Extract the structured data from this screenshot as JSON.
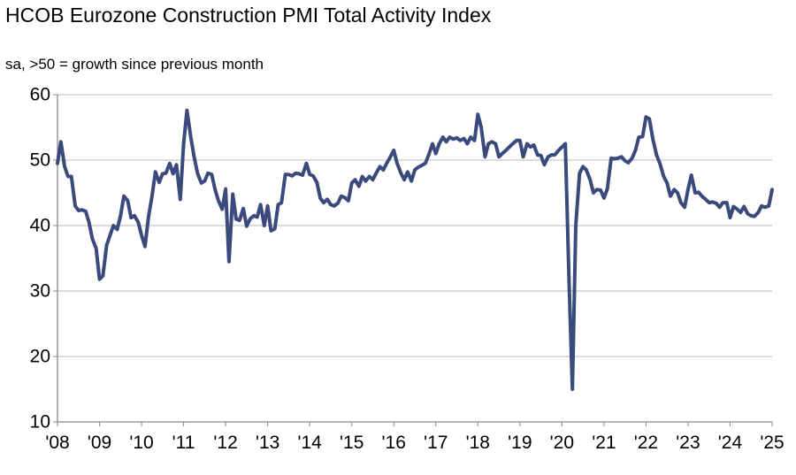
{
  "chart_data": {
    "type": "line",
    "title": "HCOB Eurozone Construction PMI Total Activity Index",
    "subtitle": "sa, >50 = growth  since previous month",
    "xlabel": "",
    "ylabel": "",
    "ylim": [
      10,
      60
    ],
    "yticks": [
      10,
      20,
      30,
      40,
      50,
      60
    ],
    "xtick_labels": [
      "'08",
      "'09",
      "'10",
      "'11",
      "'12",
      "'13",
      "'14",
      "'15",
      "'16",
      "'17",
      "'18",
      "'19",
      "'20",
      "'21",
      "'22",
      "'23",
      "'24",
      "'25"
    ],
    "x_start": 2008.0,
    "x_end": 2025.0,
    "grid": true,
    "line_color": "#3b4a7c",
    "series": [
      {
        "name": "Total Activity Index",
        "values": [
          [
            2008.0,
            49.5
          ],
          [
            2008.08,
            52.8
          ],
          [
            2008.17,
            49.0
          ],
          [
            2008.25,
            47.5
          ],
          [
            2008.33,
            47.5
          ],
          [
            2008.42,
            43.0
          ],
          [
            2008.5,
            42.3
          ],
          [
            2008.58,
            42.4
          ],
          [
            2008.67,
            42.2
          ],
          [
            2008.75,
            40.5
          ],
          [
            2008.83,
            38.0
          ],
          [
            2008.92,
            36.5
          ],
          [
            2009.0,
            31.8
          ],
          [
            2009.08,
            32.3
          ],
          [
            2009.17,
            37.0
          ],
          [
            2009.25,
            38.5
          ],
          [
            2009.33,
            40.0
          ],
          [
            2009.42,
            39.4
          ],
          [
            2009.5,
            41.5
          ],
          [
            2009.58,
            44.5
          ],
          [
            2009.67,
            43.8
          ],
          [
            2009.75,
            41.2
          ],
          [
            2009.83,
            41.5
          ],
          [
            2009.92,
            40.5
          ],
          [
            2010.0,
            38.5
          ],
          [
            2010.08,
            36.8
          ],
          [
            2010.17,
            41.5
          ],
          [
            2010.25,
            44.5
          ],
          [
            2010.33,
            48.2
          ],
          [
            2010.42,
            46.6
          ],
          [
            2010.5,
            47.9
          ],
          [
            2010.58,
            48.0
          ],
          [
            2010.67,
            49.5
          ],
          [
            2010.75,
            47.9
          ],
          [
            2010.83,
            49.3
          ],
          [
            2010.92,
            44.0
          ],
          [
            2011.0,
            52.5
          ],
          [
            2011.08,
            57.6
          ],
          [
            2011.17,
            53.5
          ],
          [
            2011.25,
            50.5
          ],
          [
            2011.33,
            48.0
          ],
          [
            2011.42,
            46.5
          ],
          [
            2011.5,
            46.8
          ],
          [
            2011.58,
            48.0
          ],
          [
            2011.67,
            47.8
          ],
          [
            2011.75,
            45.5
          ],
          [
            2011.83,
            43.8
          ],
          [
            2011.92,
            42.5
          ],
          [
            2012.0,
            45.6
          ],
          [
            2012.08,
            34.5
          ],
          [
            2012.17,
            44.8
          ],
          [
            2012.25,
            41.0
          ],
          [
            2012.33,
            40.8
          ],
          [
            2012.42,
            42.6
          ],
          [
            2012.5,
            39.9
          ],
          [
            2012.58,
            41.0
          ],
          [
            2012.67,
            41.5
          ],
          [
            2012.75,
            41.3
          ],
          [
            2012.83,
            43.2
          ],
          [
            2012.92,
            40.0
          ],
          [
            2013.0,
            43.0
          ],
          [
            2013.08,
            39.2
          ],
          [
            2013.17,
            39.5
          ],
          [
            2013.25,
            43.2
          ],
          [
            2013.33,
            43.5
          ],
          [
            2013.42,
            47.8
          ],
          [
            2013.5,
            47.8
          ],
          [
            2013.58,
            47.6
          ],
          [
            2013.67,
            48.0
          ],
          [
            2013.75,
            47.9
          ],
          [
            2013.83,
            47.7
          ],
          [
            2013.92,
            49.5
          ],
          [
            2014.0,
            47.8
          ],
          [
            2014.08,
            47.6
          ],
          [
            2014.17,
            46.6
          ],
          [
            2014.25,
            44.2
          ],
          [
            2014.33,
            43.5
          ],
          [
            2014.42,
            44.0
          ],
          [
            2014.5,
            43.2
          ],
          [
            2014.58,
            43.0
          ],
          [
            2014.67,
            43.4
          ],
          [
            2014.75,
            44.5
          ],
          [
            2014.83,
            44.3
          ],
          [
            2014.92,
            43.8
          ],
          [
            2015.0,
            46.5
          ],
          [
            2015.08,
            47.0
          ],
          [
            2015.17,
            46.0
          ],
          [
            2015.25,
            47.5
          ],
          [
            2015.33,
            46.8
          ],
          [
            2015.42,
            47.5
          ],
          [
            2015.5,
            47.0
          ],
          [
            2015.58,
            48.0
          ],
          [
            2015.67,
            49.0
          ],
          [
            2015.75,
            48.5
          ],
          [
            2015.83,
            49.5
          ],
          [
            2015.92,
            50.5
          ],
          [
            2016.0,
            51.5
          ],
          [
            2016.08,
            49.5
          ],
          [
            2016.17,
            48.0
          ],
          [
            2016.25,
            47.0
          ],
          [
            2016.33,
            48.2
          ],
          [
            2016.42,
            46.8
          ],
          [
            2016.5,
            48.5
          ],
          [
            2016.58,
            48.9
          ],
          [
            2016.67,
            49.2
          ],
          [
            2016.75,
            49.5
          ],
          [
            2016.83,
            50.8
          ],
          [
            2016.92,
            52.5
          ],
          [
            2017.0,
            51.0
          ],
          [
            2017.08,
            52.5
          ],
          [
            2017.17,
            53.5
          ],
          [
            2017.25,
            52.8
          ],
          [
            2017.33,
            53.5
          ],
          [
            2017.42,
            53.2
          ],
          [
            2017.5,
            53.4
          ],
          [
            2017.58,
            53.0
          ],
          [
            2017.67,
            53.3
          ],
          [
            2017.75,
            52.5
          ],
          [
            2017.83,
            53.5
          ],
          [
            2017.92,
            53.0
          ],
          [
            2018.0,
            57.0
          ],
          [
            2018.08,
            55.0
          ],
          [
            2018.17,
            50.5
          ],
          [
            2018.25,
            52.5
          ],
          [
            2018.33,
            52.8
          ],
          [
            2018.42,
            52.5
          ],
          [
            2018.5,
            50.5
          ],
          [
            2018.58,
            51.0
          ],
          [
            2018.67,
            51.5
          ],
          [
            2018.75,
            52.0
          ],
          [
            2018.83,
            52.5
          ],
          [
            2018.92,
            53.0
          ],
          [
            2019.0,
            53.0
          ],
          [
            2019.08,
            50.5
          ],
          [
            2019.17,
            52.5
          ],
          [
            2019.25,
            52.0
          ],
          [
            2019.33,
            52.3
          ],
          [
            2019.42,
            50.8
          ],
          [
            2019.5,
            50.7
          ],
          [
            2019.58,
            49.3
          ],
          [
            2019.67,
            50.5
          ],
          [
            2019.75,
            50.8
          ],
          [
            2019.83,
            50.8
          ],
          [
            2019.92,
            51.5
          ],
          [
            2020.0,
            52.0
          ],
          [
            2020.08,
            52.5
          ],
          [
            2020.17,
            31.5
          ],
          [
            2020.25,
            15.0
          ],
          [
            2020.33,
            40.0
          ],
          [
            2020.42,
            48.0
          ],
          [
            2020.5,
            49.0
          ],
          [
            2020.58,
            48.5
          ],
          [
            2020.67,
            47.0
          ],
          [
            2020.75,
            45.0
          ],
          [
            2020.83,
            45.5
          ],
          [
            2020.92,
            45.4
          ],
          [
            2021.0,
            44.2
          ],
          [
            2021.08,
            45.6
          ],
          [
            2021.17,
            50.3
          ],
          [
            2021.25,
            50.2
          ],
          [
            2021.33,
            50.3
          ],
          [
            2021.42,
            50.5
          ],
          [
            2021.5,
            49.9
          ],
          [
            2021.58,
            49.6
          ],
          [
            2021.67,
            50.3
          ],
          [
            2021.75,
            51.5
          ],
          [
            2021.83,
            53.5
          ],
          [
            2021.92,
            53.6
          ],
          [
            2022.0,
            56.6
          ],
          [
            2022.08,
            56.3
          ],
          [
            2022.17,
            53.0
          ],
          [
            2022.25,
            50.8
          ],
          [
            2022.33,
            49.5
          ],
          [
            2022.42,
            47.5
          ],
          [
            2022.5,
            46.5
          ],
          [
            2022.58,
            44.5
          ],
          [
            2022.67,
            45.5
          ],
          [
            2022.75,
            45.0
          ],
          [
            2022.83,
            43.5
          ],
          [
            2022.92,
            42.8
          ],
          [
            2023.0,
            45.5
          ],
          [
            2023.08,
            47.7
          ],
          [
            2023.17,
            45.0
          ],
          [
            2023.25,
            45.1
          ],
          [
            2023.33,
            44.5
          ],
          [
            2023.42,
            44.0
          ],
          [
            2023.5,
            43.5
          ],
          [
            2023.58,
            43.6
          ],
          [
            2023.67,
            43.4
          ],
          [
            2023.75,
            42.8
          ],
          [
            2023.83,
            43.5
          ],
          [
            2023.92,
            43.5
          ],
          [
            2024.0,
            41.2
          ],
          [
            2024.08,
            42.9
          ],
          [
            2024.17,
            42.5
          ],
          [
            2024.25,
            42.0
          ],
          [
            2024.33,
            42.9
          ],
          [
            2024.42,
            41.8
          ],
          [
            2024.5,
            41.5
          ],
          [
            2024.58,
            41.4
          ],
          [
            2024.67,
            42.0
          ],
          [
            2024.75,
            43.0
          ],
          [
            2024.83,
            42.8
          ],
          [
            2024.92,
            43.0
          ],
          [
            2025.0,
            45.5
          ]
        ]
      }
    ]
  }
}
